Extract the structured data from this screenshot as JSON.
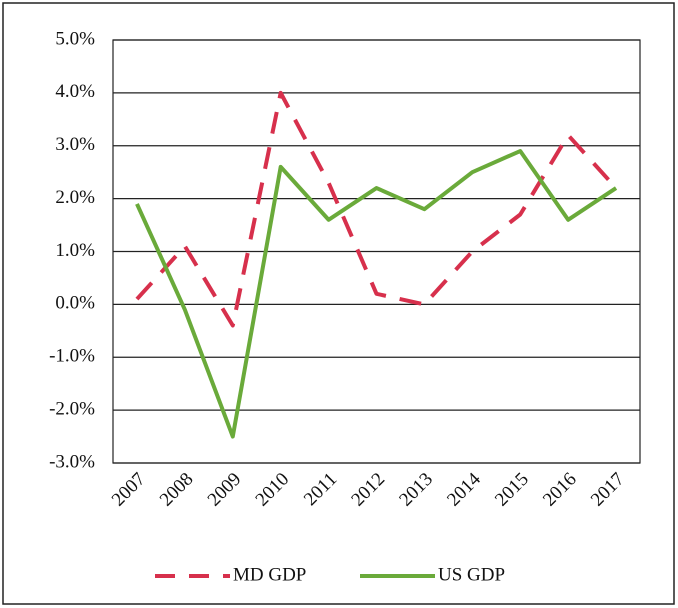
{
  "chart_data": {
    "type": "line",
    "categories": [
      "2007",
      "2008",
      "2009",
      "2010",
      "2011",
      "2012",
      "2013",
      "2014",
      "2015",
      "2016",
      "2017"
    ],
    "series": [
      {
        "name": "MD GDP",
        "color": "#d7304c",
        "dashed": true,
        "values": [
          0.1,
          1.1,
          -0.4,
          4.0,
          2.3,
          0.2,
          0.0,
          1.0,
          1.7,
          3.2,
          2.2
        ]
      },
      {
        "name": "US GDP",
        "color": "#6aaa3a",
        "dashed": false,
        "values": [
          1.9,
          -0.1,
          -2.5,
          2.6,
          1.6,
          2.2,
          1.8,
          2.5,
          2.9,
          1.6,
          2.2
        ]
      }
    ],
    "ylim": [
      -3,
      5
    ],
    "yticks": [
      {
        "value": -3,
        "label": "-3.0%"
      },
      {
        "value": -2,
        "label": "-2.0%"
      },
      {
        "value": -1,
        "label": "-1.0%"
      },
      {
        "value": 0,
        "label": "0.0%"
      },
      {
        "value": 1,
        "label": "1.0%"
      },
      {
        "value": 2,
        "label": "2.0%"
      },
      {
        "value": 3,
        "label": "3.0%"
      },
      {
        "value": 4,
        "label": "4.0%"
      },
      {
        "value": 5,
        "label": "5.0%"
      }
    ],
    "grid": true,
    "legend": "bottom"
  }
}
